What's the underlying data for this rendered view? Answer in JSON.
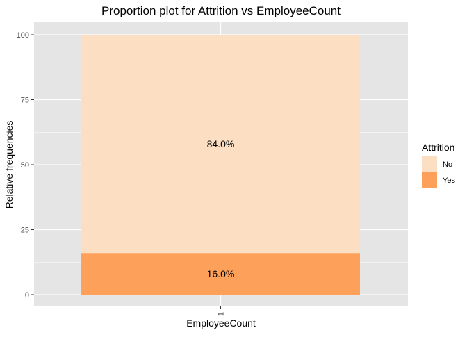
{
  "chart_data": {
    "type": "bar",
    "stacked": true,
    "title": "Proportion plot for Attrition vs EmployeeCount",
    "xlabel": "EmployeeCount",
    "ylabel": "Relative frequencies",
    "categories": [
      "1"
    ],
    "ylim": [
      0,
      100
    ],
    "y_ticks": [
      "0",
      "25",
      "50",
      "75",
      "100"
    ],
    "grid": true,
    "legend": {
      "title": "Attrition",
      "position": "right"
    },
    "series": [
      {
        "name": "Yes",
        "values": [
          16.0
        ],
        "labels": [
          "16.0%"
        ],
        "color": "#FDA05A"
      },
      {
        "name": "No",
        "values": [
          84.0
        ],
        "labels": [
          "84.0%"
        ],
        "color": "#FCDFC2"
      }
    ],
    "panel_color": "#E5E5E5",
    "grid_color": "#FFFFFF"
  }
}
